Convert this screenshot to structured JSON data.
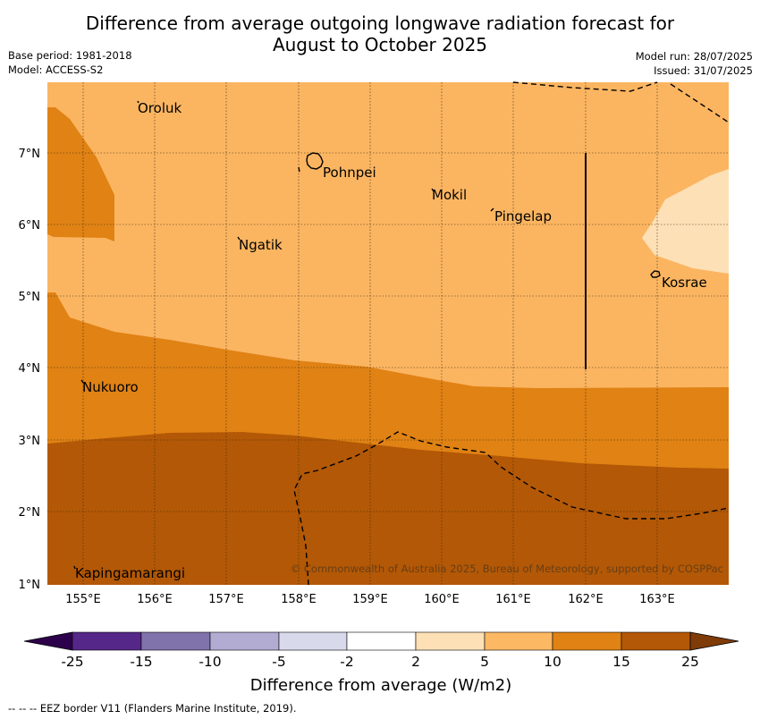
{
  "header": {
    "title_line1": "Difference from average outgoing longwave radiation forecast for",
    "title_line2": "August to October 2025",
    "base_period": "Base period: 1981-2018",
    "model": "Model: ACCESS-S2",
    "model_run": "Model run: 28/07/2025",
    "issued": "Issued: 31/07/2025"
  },
  "map": {
    "lon_ticks": [
      "155°E",
      "156°E",
      "157°E",
      "158°E",
      "159°E",
      "160°E",
      "161°E",
      "162°E",
      "163°E"
    ],
    "lat_ticks": [
      "7°N",
      "6°N",
      "5°N",
      "4°N",
      "3°N",
      "2°N",
      "1°N"
    ],
    "places": [
      "Oroluk",
      "Pohnpei",
      "Mokil",
      "Pingelap",
      "Ngatik",
      "Kosrae",
      "Nukuoro",
      "Kapingamarangi"
    ],
    "copyright": "© Commonwealth of Australia 2025, Bureau of Meteorology, supported by COSPPac",
    "fill_colors": {
      "c5_10": "#fbb561",
      "c10_15": "#e08214",
      "c15_25": "#b35806",
      "c2_5": "#fee0b6"
    }
  },
  "legend": {
    "labels": [
      "-25",
      "-15",
      "-10",
      "-5",
      "-2",
      "2",
      "5",
      "10",
      "15",
      "25"
    ],
    "colors": [
      "#2d004b",
      "#542788",
      "#8073ac",
      "#b2abd2",
      "#d8daeb",
      "#ffffff",
      "#fee0b6",
      "#fdb863",
      "#e08214",
      "#b35806",
      "#7f3b08"
    ],
    "title": "Difference from average (W/m2)"
  },
  "footer": {
    "eez_note": "-- -- -- EEZ border V11 (Flanders Marine Institute, 2019)."
  }
}
